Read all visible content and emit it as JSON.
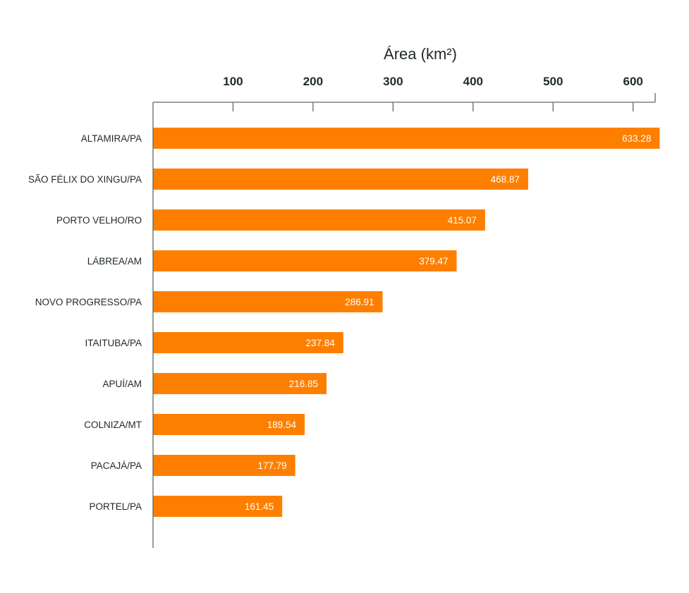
{
  "chart_data": {
    "type": "bar",
    "orientation": "horizontal",
    "x_axis_position": "top",
    "xlabel": "Área (km²)",
    "ylabel": "",
    "title": "",
    "xticks": [
      100,
      200,
      300,
      400,
      500,
      600
    ],
    "xlim": [
      0,
      625
    ],
    "grid": false,
    "bar_color": "#fe7f00",
    "axis_color": "#5a6b62",
    "text_color": "#1f2a24",
    "value_label_color": "#ffffff",
    "categories": [
      "ALTAMIRA/PA",
      "SÃO FÉLIX DO XINGU/PA",
      "PORTO VELHO/RO",
      "LÁBREA/AM",
      "NOVO PROGRESSO/PA",
      "ITAITUBA/PA",
      "APUÍ/AM",
      "COLNIZA/MT",
      "PACAJÁ/PA",
      "PORTEL/PA"
    ],
    "values": [
      633.28,
      468.87,
      415.07,
      379.47,
      286.91,
      237.84,
      216.85,
      189.54,
      177.79,
      161.45
    ],
    "value_labels": [
      "633.28",
      "468.87",
      "415.07",
      "379.47",
      "286.91",
      "237.84",
      "216.85",
      "189.54",
      "177.79",
      "161.45"
    ]
  }
}
